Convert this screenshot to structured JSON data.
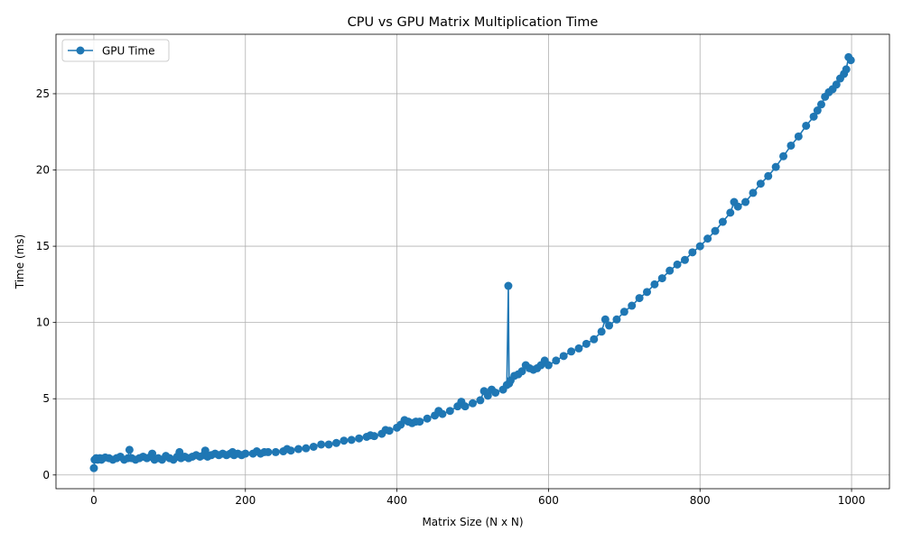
{
  "chart_data": {
    "type": "line",
    "title": "CPU vs GPU Matrix Multiplication Time",
    "xlabel": "Matrix Size (N x N)",
    "ylabel": "Time (ms)",
    "xlim": [
      -50,
      1050
    ],
    "ylim": [
      -0.9,
      28.9
    ],
    "xticks": [
      0,
      200,
      400,
      600,
      800,
      1000
    ],
    "yticks": [
      0,
      5,
      10,
      15,
      20,
      25
    ],
    "xtick_labels": [
      "0",
      "200",
      "400",
      "600",
      "800",
      "1000"
    ],
    "ytick_labels": [
      "0",
      "5",
      "10",
      "15",
      "20",
      "25"
    ],
    "grid": true,
    "legend_position": "top-left",
    "marker": "circle",
    "colors": {
      "series": "#1f77b4"
    },
    "series": [
      {
        "name": "GPU Time",
        "x": [
          0,
          1,
          3,
          5,
          8,
          10,
          15,
          20,
          25,
          30,
          35,
          40,
          45,
          47,
          50,
          55,
          60,
          65,
          70,
          75,
          77,
          80,
          85,
          90,
          95,
          100,
          105,
          110,
          113,
          115,
          120,
          125,
          130,
          135,
          140,
          145,
          147,
          150,
          155,
          160,
          165,
          170,
          175,
          180,
          183,
          185,
          190,
          195,
          200,
          210,
          215,
          220,
          225,
          230,
          240,
          250,
          255,
          260,
          270,
          280,
          290,
          300,
          310,
          320,
          330,
          340,
          350,
          360,
          365,
          370,
          380,
          385,
          390,
          400,
          405,
          410,
          415,
          420,
          425,
          430,
          440,
          450,
          455,
          460,
          470,
          480,
          485,
          490,
          500,
          510,
          515,
          520,
          525,
          530,
          540,
          545,
          547,
          548,
          550,
          555,
          560,
          565,
          570,
          575,
          580,
          585,
          590,
          595,
          600,
          610,
          620,
          630,
          640,
          650,
          660,
          670,
          675,
          680,
          690,
          700,
          710,
          720,
          730,
          740,
          750,
          760,
          770,
          780,
          790,
          800,
          810,
          820,
          830,
          840,
          845,
          850,
          860,
          870,
          880,
          890,
          900,
          910,
          920,
          930,
          940,
          950,
          955,
          960,
          965,
          970,
          975,
          980,
          985,
          990,
          993,
          996,
          999
        ],
        "y": [
          0.45,
          1.0,
          1.1,
          1.0,
          1.1,
          1.0,
          1.15,
          1.1,
          1.0,
          1.1,
          1.2,
          1.0,
          1.1,
          1.65,
          1.1,
          1.0,
          1.1,
          1.2,
          1.1,
          1.2,
          1.4,
          1.0,
          1.1,
          1.0,
          1.25,
          1.1,
          1.0,
          1.2,
          1.5,
          1.1,
          1.2,
          1.1,
          1.2,
          1.3,
          1.2,
          1.3,
          1.6,
          1.2,
          1.3,
          1.4,
          1.3,
          1.4,
          1.3,
          1.4,
          1.5,
          1.3,
          1.4,
          1.3,
          1.4,
          1.4,
          1.55,
          1.4,
          1.5,
          1.5,
          1.5,
          1.55,
          1.7,
          1.6,
          1.7,
          1.75,
          1.85,
          2.0,
          2.0,
          2.1,
          2.25,
          2.3,
          2.4,
          2.5,
          2.6,
          2.55,
          2.7,
          2.95,
          2.9,
          3.1,
          3.3,
          3.6,
          3.5,
          3.4,
          3.5,
          3.5,
          3.7,
          3.9,
          4.2,
          4.0,
          4.2,
          4.5,
          4.8,
          4.5,
          4.7,
          4.9,
          5.5,
          5.2,
          5.6,
          5.4,
          5.6,
          5.9,
          12.4,
          6.0,
          6.2,
          6.5,
          6.6,
          6.8,
          7.2,
          7.0,
          6.9,
          7.0,
          7.2,
          7.5,
          7.2,
          7.5,
          7.8,
          8.1,
          8.3,
          8.6,
          8.9,
          9.4,
          10.2,
          9.8,
          10.2,
          10.7,
          11.1,
          11.6,
          12.0,
          12.5,
          12.9,
          13.4,
          13.8,
          14.1,
          14.6,
          15.0,
          15.5,
          16.0,
          16.6,
          17.2,
          17.9,
          17.6,
          17.9,
          18.5,
          19.1,
          19.6,
          20.2,
          20.9,
          21.6,
          22.2,
          22.9,
          23.5,
          23.9,
          24.3,
          24.8,
          25.1,
          25.3,
          25.6,
          26.0,
          26.3,
          26.6,
          27.4,
          27.2
        ]
      }
    ]
  }
}
